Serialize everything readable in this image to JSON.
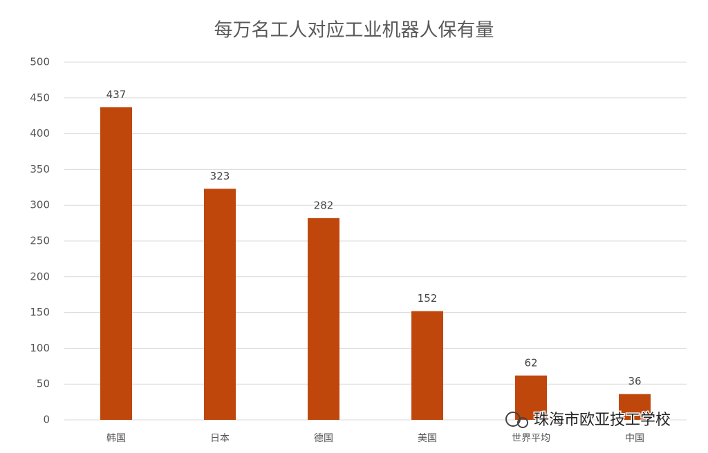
{
  "chart_data": {
    "type": "bar",
    "title": "每万名工人对应工业机器人保有量",
    "categories": [
      "韩国",
      "日本",
      "德国",
      "美国",
      "世界平均",
      "中国"
    ],
    "values": [
      437,
      323,
      282,
      152,
      62,
      36
    ],
    "color": "#c0470c",
    "ylim": [
      0,
      500
    ],
    "yticks": [
      0,
      50,
      100,
      150,
      200,
      250,
      300,
      350,
      400,
      450,
      500
    ],
    "grid": true,
    "watermark": "珠海市欧亚技工学校"
  }
}
